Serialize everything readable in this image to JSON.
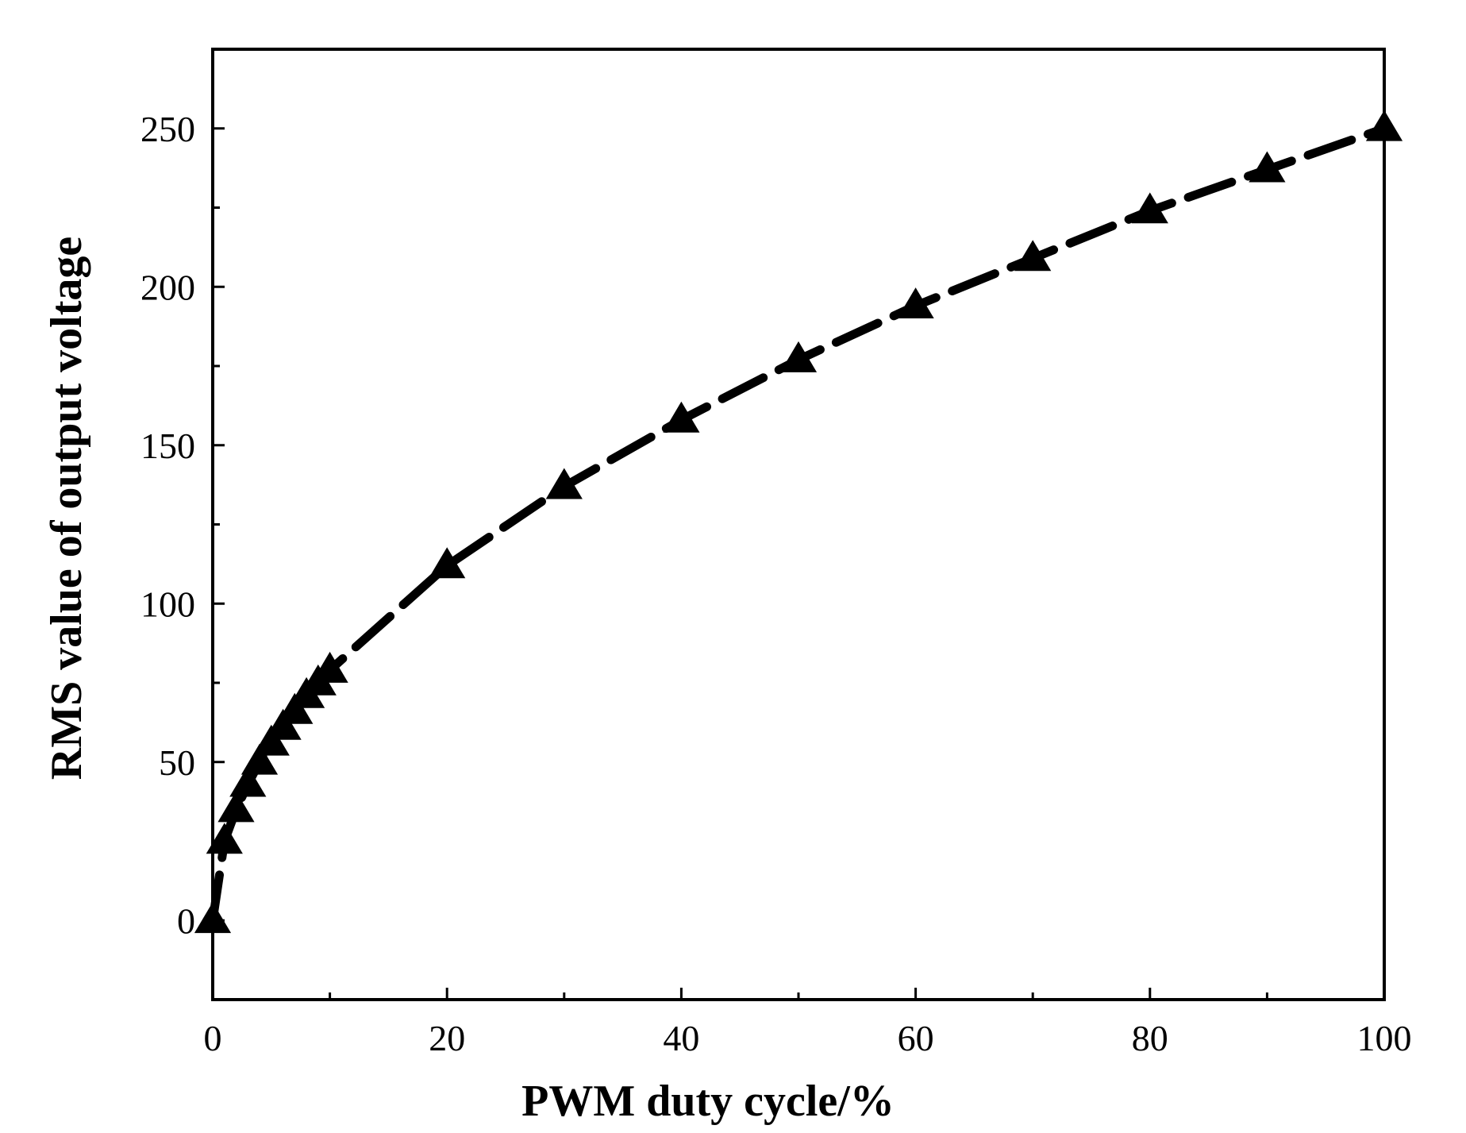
{
  "chart_data": {
    "type": "line",
    "title": "",
    "xlabel": "PWM duty cycle/%",
    "ylabel": "RMS value of output voltage",
    "xlim": [
      0,
      100
    ],
    "ylim": [
      -25,
      275
    ],
    "x_ticks": [
      0,
      20,
      40,
      60,
      80,
      100
    ],
    "x_tick_labels": [
      "0",
      "20",
      "40",
      "60",
      "80",
      "100"
    ],
    "x_minor_ticks": [
      10,
      30,
      50,
      70,
      90
    ],
    "y_ticks": [
      0,
      50,
      100,
      150,
      200,
      250
    ],
    "y_tick_labels": [
      "0",
      "50",
      "100",
      "150",
      "200",
      "250"
    ],
    "y_minor_ticks": [
      25,
      75,
      125,
      175,
      225
    ],
    "grid": false,
    "legend": "none",
    "series": [
      {
        "name": "RMS value of output voltage",
        "marker": "triangle",
        "line_style": "dashed",
        "color": "#000000",
        "x": [
          0,
          1,
          2,
          3,
          4,
          5,
          6,
          7,
          8,
          9,
          10,
          20,
          30,
          40,
          50,
          60,
          70,
          80,
          90,
          100
        ],
        "y": [
          0,
          25,
          35,
          43,
          50,
          56,
          61,
          66,
          71,
          75,
          79,
          112,
          137,
          158,
          177,
          194,
          209,
          224,
          237,
          250
        ]
      }
    ]
  }
}
